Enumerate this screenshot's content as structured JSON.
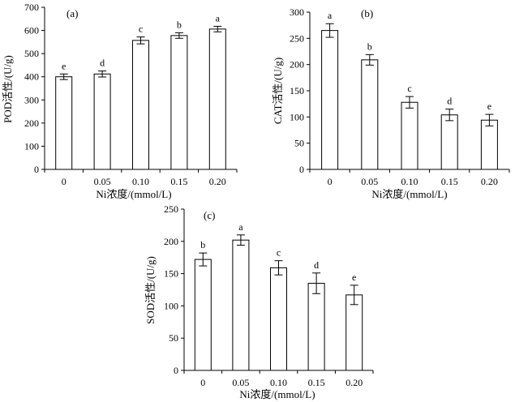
{
  "chart_data": [
    {
      "type": "bar",
      "panel_label": "(a)",
      "ylabel": "POD活性/(U/g)",
      "xlabel": "Ni浓度/(mmol/L)",
      "categories": [
        "0",
        "0.05",
        "0.10",
        "0.15",
        "0.20"
      ],
      "ylim": [
        0,
        700
      ],
      "yticks": [
        "0",
        "100",
        "200",
        "300",
        "400",
        "500",
        "600",
        "700"
      ],
      "values": [
        400,
        412,
        557,
        578,
        606
      ],
      "errors": [
        12,
        13,
        15,
        12,
        12
      ],
      "letters": [
        "e",
        "d",
        "c",
        "b",
        "a"
      ]
    },
    {
      "type": "bar",
      "panel_label": "(b)",
      "ylabel": "CAT活性/(U/g)",
      "xlabel": "Ni浓度/(mmol/L)",
      "categories": [
        "0",
        "0.05",
        "0.10",
        "0.15",
        "0.20"
      ],
      "ylim": [
        0,
        300
      ],
      "yticks": [
        "0",
        "50",
        "100",
        "150",
        "200",
        "250",
        "300"
      ],
      "values": [
        265,
        209,
        128,
        104,
        94
      ],
      "errors": [
        13,
        10,
        11,
        11,
        11
      ],
      "letters": [
        "a",
        "b",
        "c",
        "d",
        "e"
      ]
    },
    {
      "type": "bar",
      "panel_label": "(c)",
      "ylabel": "SOD活性/(U/g)",
      "xlabel": "Ni浓度/(mmol/L)",
      "categories": [
        "0",
        "0.05",
        "0.10",
        "0.15",
        "0.20"
      ],
      "ylim": [
        0,
        250
      ],
      "yticks": [
        "0",
        "50",
        "100",
        "150",
        "200",
        "250"
      ],
      "values": [
        172,
        202,
        159,
        135,
        117
      ],
      "errors": [
        10,
        8,
        11,
        16,
        15
      ],
      "letters": [
        "b",
        "a",
        "c",
        "d",
        "e"
      ]
    }
  ]
}
